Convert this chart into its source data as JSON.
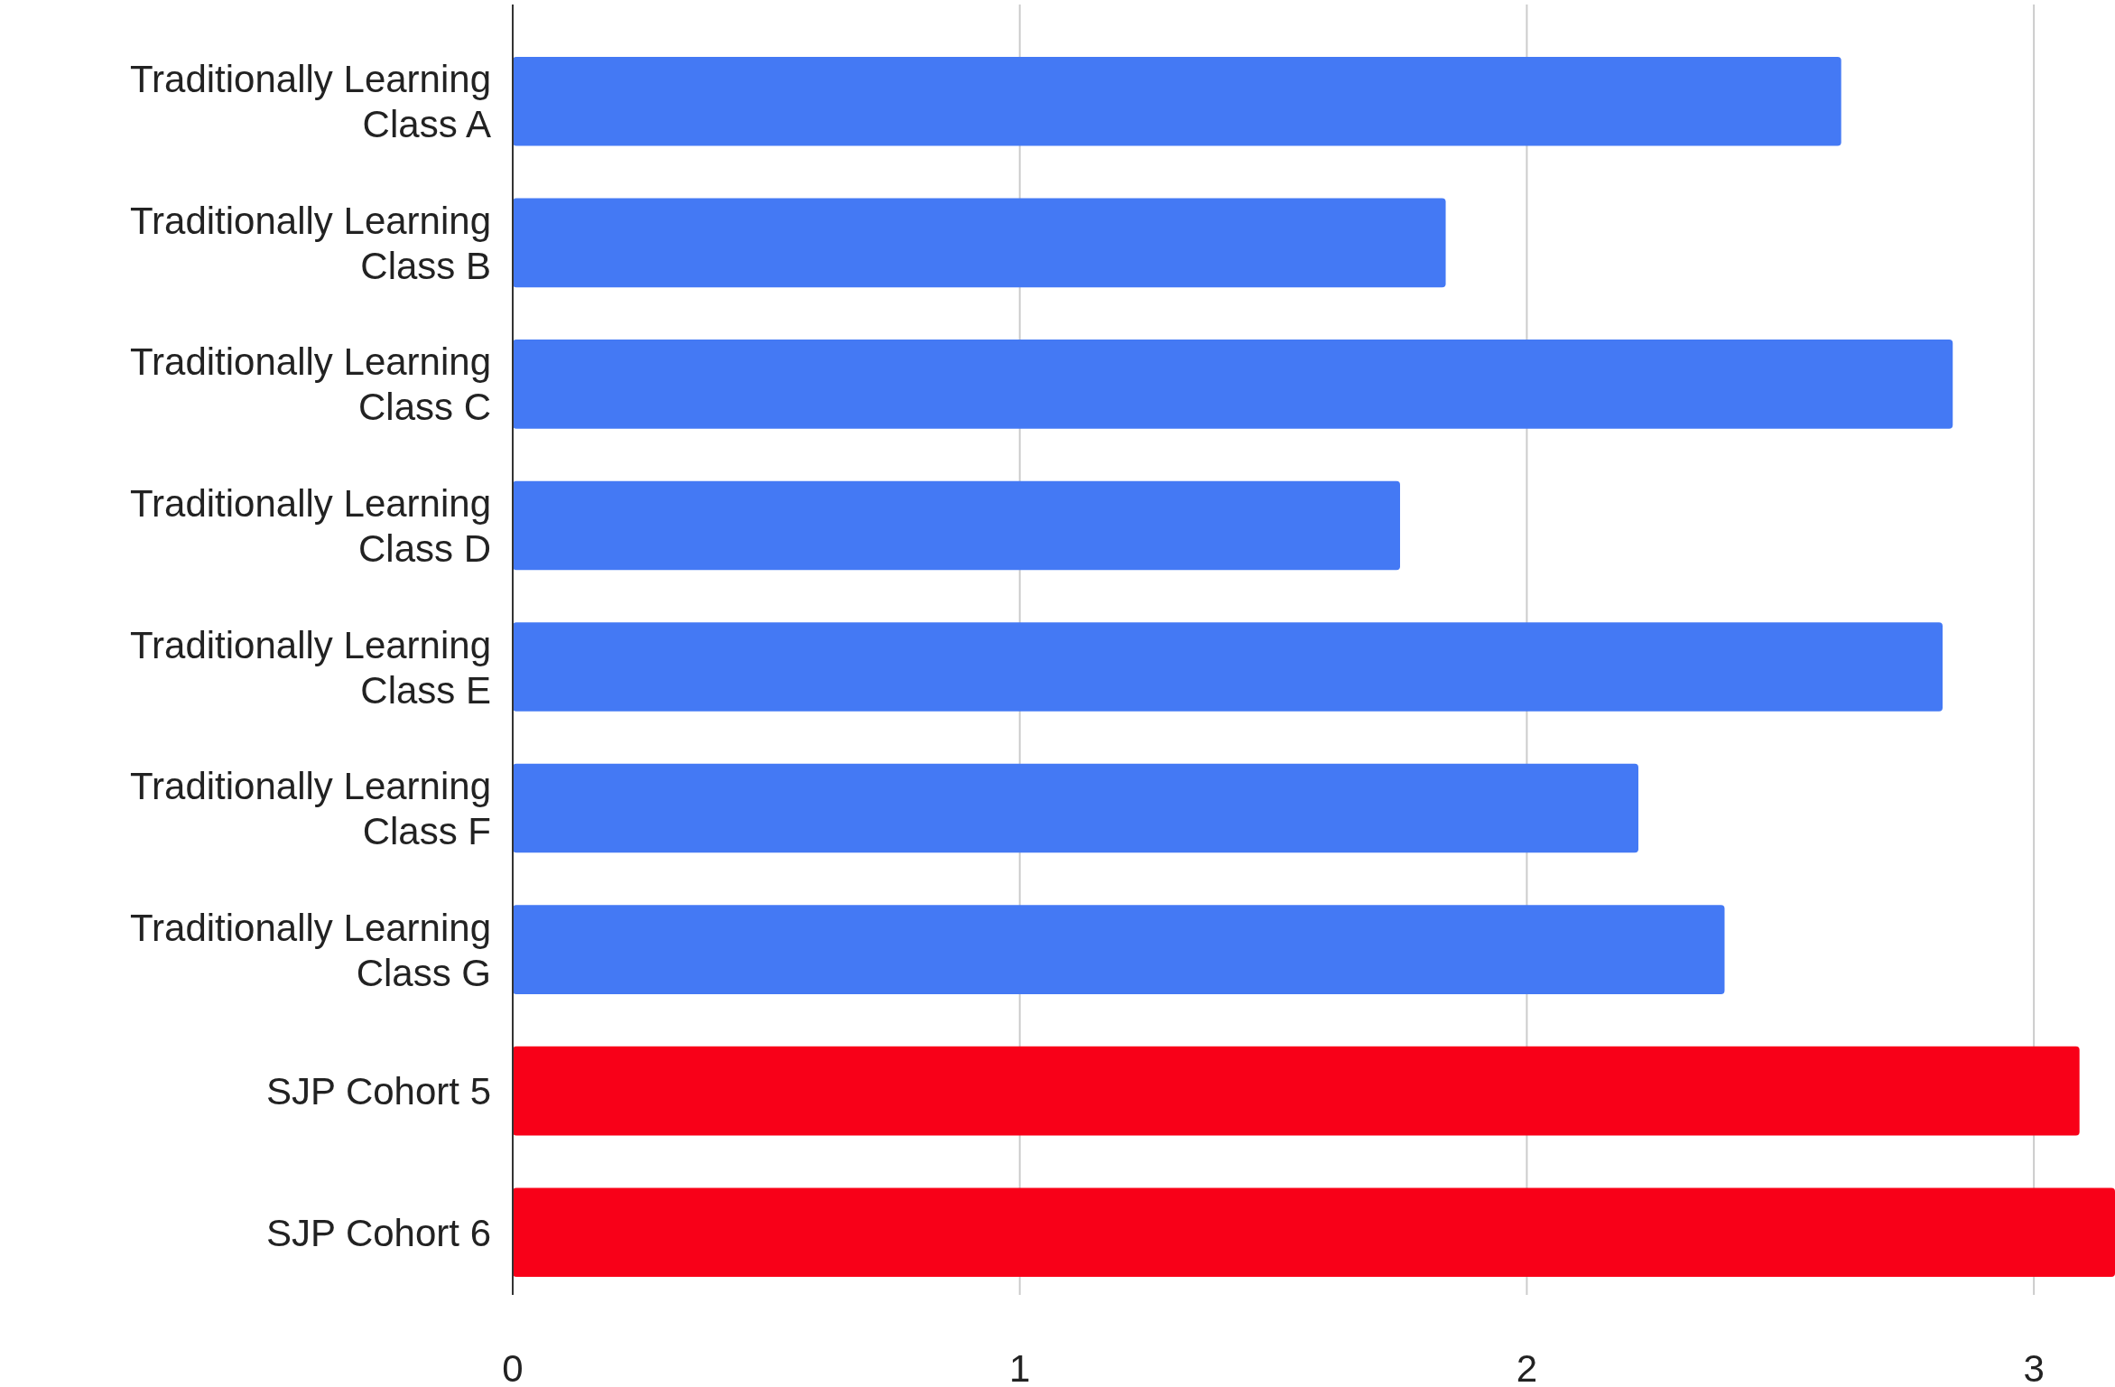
{
  "chart_data": {
    "type": "bar",
    "orientation": "horizontal",
    "categories": [
      "Traditionally Learning Class A",
      "Traditionally Learning Class B",
      "Traditionally Learning Class C",
      "Traditionally Learning Class D",
      "Traditionally Learning Class E",
      "Traditionally Learning Class F",
      "Traditionally Learning Class G",
      "SJP Cohort 5",
      "SJP Cohort 6"
    ],
    "values": [
      2.62,
      1.84,
      2.84,
      1.75,
      2.82,
      2.22,
      2.39,
      3.09,
      3.16
    ],
    "colors": [
      "#4479f4",
      "#4479f4",
      "#4479f4",
      "#4479f4",
      "#4479f4",
      "#4479f4",
      "#4479f4",
      "#f80018",
      "#f80018"
    ],
    "xlim": [
      0,
      3.16
    ],
    "xticks": [
      0,
      1,
      2,
      3
    ],
    "grid": "x"
  }
}
